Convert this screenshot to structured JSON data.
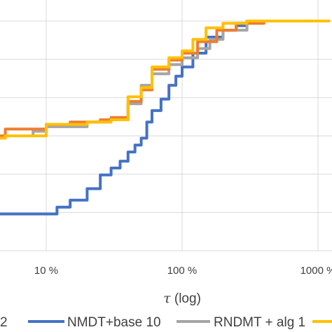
{
  "chart_data": {
    "type": "line",
    "x_scale": "log",
    "x_ticks": [
      {
        "value": 0.1,
        "label": "10 %"
      },
      {
        "value": 1,
        "label": "100 %"
      },
      {
        "value": 10,
        "label": "1000 %"
      }
    ],
    "xlim": [
      0.025,
      12
    ],
    "ylim": [
      0,
      1
    ],
    "xlabel_symbol": "τ",
    "xlabel_rest": " (log)",
    "grid": true,
    "legend_position": "bottom",
    "legend_cut_entry": "2",
    "series": [
      {
        "name": "NMDT+base 10",
        "color": "#4472C4",
        "points": [
          [
            0.025,
            0.16
          ],
          [
            0.1,
            0.16
          ],
          [
            0.12,
            0.19
          ],
          [
            0.15,
            0.22
          ],
          [
            0.2,
            0.27
          ],
          [
            0.25,
            0.33
          ],
          [
            0.3,
            0.36
          ],
          [
            0.35,
            0.39
          ],
          [
            0.4,
            0.43
          ],
          [
            0.45,
            0.46
          ],
          [
            0.5,
            0.49
          ],
          [
            0.55,
            0.56
          ],
          [
            0.6,
            0.61
          ],
          [
            0.7,
            0.66
          ],
          [
            0.8,
            0.72
          ],
          [
            0.9,
            0.76
          ],
          [
            1.0,
            0.8
          ],
          [
            1.2,
            0.86
          ],
          [
            1.5,
            0.93
          ],
          [
            2.0,
            0.96
          ],
          [
            2.5,
            0.98
          ],
          [
            3.0,
            1.0
          ],
          [
            12,
            1.0
          ]
        ]
      },
      {
        "name": "RNDMT + alg 1",
        "color": "#A5A5A5",
        "points": [
          [
            0.025,
            0.5
          ],
          [
            0.05,
            0.5
          ],
          [
            0.08,
            0.52
          ],
          [
            0.1,
            0.54
          ],
          [
            0.2,
            0.56
          ],
          [
            0.3,
            0.57
          ],
          [
            0.4,
            0.64
          ],
          [
            0.5,
            0.72
          ],
          [
            0.6,
            0.77
          ],
          [
            0.8,
            0.81
          ],
          [
            1.0,
            0.84
          ],
          [
            1.3,
            0.88
          ],
          [
            1.6,
            0.92
          ],
          [
            2.0,
            0.96
          ],
          [
            3.0,
            0.99
          ],
          [
            4.0,
            1.0
          ],
          [
            12,
            1.0
          ]
        ]
      },
      {
        "name": "",
        "color": "#ED7D31",
        "points": [
          [
            0.025,
            0.5
          ],
          [
            0.05,
            0.53
          ],
          [
            0.1,
            0.55
          ],
          [
            0.15,
            0.56
          ],
          [
            0.25,
            0.57
          ],
          [
            0.3,
            0.58
          ],
          [
            0.4,
            0.65
          ],
          [
            0.5,
            0.7
          ],
          [
            0.6,
            0.79
          ],
          [
            0.8,
            0.83
          ],
          [
            1.0,
            0.86
          ],
          [
            1.3,
            0.91
          ],
          [
            1.8,
            0.96
          ],
          [
            2.5,
            0.99
          ],
          [
            4.0,
            1.0
          ],
          [
            12,
            1.0
          ]
        ]
      },
      {
        "name": "",
        "color": "#FFC000",
        "points": [
          [
            0.025,
            0.49
          ],
          [
            0.05,
            0.5
          ],
          [
            0.1,
            0.55
          ],
          [
            0.2,
            0.56
          ],
          [
            0.3,
            0.57
          ],
          [
            0.4,
            0.67
          ],
          [
            0.5,
            0.71
          ],
          [
            0.6,
            0.8
          ],
          [
            0.8,
            0.84
          ],
          [
            1.0,
            0.87
          ],
          [
            1.2,
            0.92
          ],
          [
            1.5,
            0.97
          ],
          [
            2.0,
            0.99
          ],
          [
            3.0,
            1.0
          ],
          [
            12,
            1.0
          ]
        ]
      }
    ]
  }
}
